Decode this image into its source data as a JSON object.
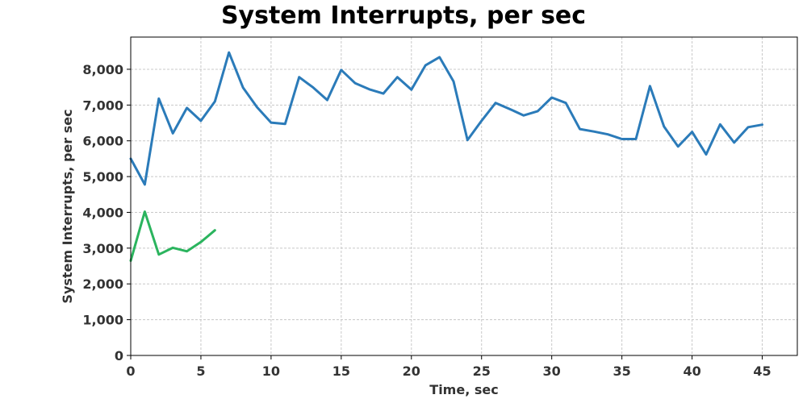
{
  "chart_data": {
    "type": "line",
    "title": "System Interrupts, per sec",
    "xlabel": "Time, sec",
    "ylabel": "System Interrupts, per sec",
    "xlim": [
      0,
      47.5
    ],
    "ylim": [
      0,
      8900
    ],
    "grid": true,
    "legend": "none",
    "x_ticks": [
      0,
      5,
      10,
      15,
      20,
      25,
      30,
      35,
      40,
      45
    ],
    "y_ticks": [
      0,
      1000,
      2000,
      3000,
      4000,
      5000,
      6000,
      7000,
      8000
    ],
    "x_tick_labels": [
      "0",
      "5",
      "10",
      "15",
      "20",
      "25",
      "30",
      "35",
      "40",
      "45"
    ],
    "y_tick_labels": [
      "0",
      "1,000",
      "2,000",
      "3,000",
      "4,000",
      "5,000",
      "6,000",
      "7,000",
      "8,000"
    ],
    "series": [
      {
        "color": "#2b7bb9",
        "x": [
          0,
          1,
          2,
          3,
          4,
          5,
          6,
          7,
          8,
          9,
          10,
          11,
          12,
          13,
          14,
          15,
          16,
          17,
          18,
          19,
          20,
          21,
          22,
          23,
          24,
          25,
          26,
          27,
          28,
          29,
          30,
          31,
          32,
          33,
          34,
          35,
          36,
          37,
          38,
          39,
          40,
          41,
          42,
          43,
          44,
          45
        ],
        "values": [
          5500,
          4780,
          7180,
          6210,
          6920,
          6560,
          7100,
          8470,
          7490,
          6940,
          6510,
          6470,
          7780,
          7490,
          7140,
          7980,
          7610,
          7440,
          7320,
          7780,
          7430,
          8110,
          8340,
          7660,
          6020,
          6560,
          7060,
          6890,
          6710,
          6830,
          7210,
          7060,
          6330,
          6260,
          6180,
          6050,
          6050,
          7530,
          6400,
          5840,
          6250,
          5620,
          6460,
          5950,
          6380,
          6450
        ]
      },
      {
        "color": "#2bb45e",
        "x": [
          0,
          1,
          2,
          3,
          4,
          5,
          6
        ],
        "values": [
          2650,
          4020,
          2820,
          3010,
          2910,
          3170,
          3500
        ]
      }
    ]
  }
}
